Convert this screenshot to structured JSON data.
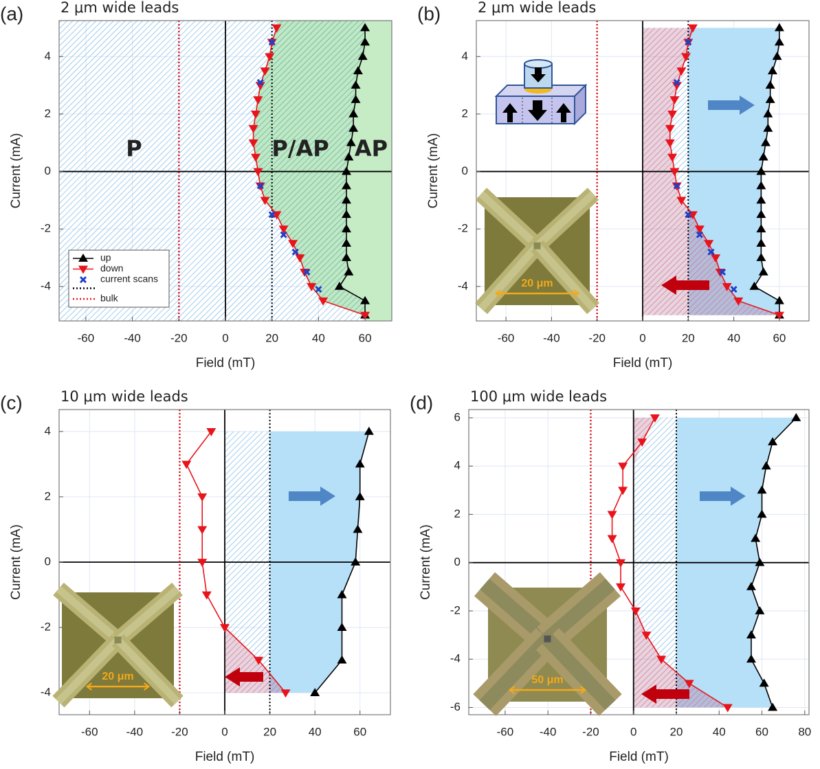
{
  "chart_data": [
    {
      "type": "line",
      "label": "(a)",
      "title": "2 μm wide leads",
      "xlabel": "Field (mT)",
      "ylabel": "Current (mA)",
      "xlim": [
        -71.5,
        71.5
      ],
      "ylim": [
        -5.2,
        5.25
      ],
      "xticks": [
        -60,
        -40,
        -20,
        0,
        20,
        40,
        60
      ],
      "yticks": [
        -4,
        -2,
        0,
        2,
        4
      ],
      "grid": true,
      "legend": "lower left",
      "annotations": [
        "P",
        "P/AP",
        "AP"
      ],
      "series": [
        {
          "name": "up",
          "color": "#000000",
          "marker": "^",
          "x": [
            60,
            60,
            59,
            57,
            56,
            56,
            55,
            55,
            54,
            53,
            52,
            52,
            52,
            52,
            52,
            52,
            52,
            53,
            49,
            60,
            60
          ],
          "values": [
            5,
            4.5,
            4,
            3.5,
            3,
            2.5,
            2,
            1.5,
            1,
            0.5,
            0,
            -0.5,
            -1,
            -1.5,
            -2,
            -2.5,
            -3,
            -3.5,
            -4,
            -4.5,
            -5
          ]
        },
        {
          "name": "down",
          "color": "#e8141b",
          "marker": "v",
          "x": [
            22,
            20,
            19,
            17,
            15,
            14,
            13,
            12,
            12,
            13,
            14,
            15,
            17,
            22,
            25,
            29,
            32,
            34,
            37,
            42,
            60
          ],
          "values": [
            5,
            4.5,
            4,
            3.5,
            3,
            2.5,
            2,
            1.5,
            1,
            0.5,
            0,
            -0.5,
            -1,
            -1.5,
            -2,
            -2.5,
            -3,
            -3.5,
            -4,
            -4.5,
            -5
          ]
        },
        {
          "name": "current scans",
          "color": "#1f3fc8",
          "marker": "x",
          "x": [
            20,
            15,
            15,
            20,
            25,
            30,
            35,
            40
          ],
          "values": [
            4.5,
            3.1,
            -0.5,
            -1.5,
            -2.2,
            -2.8,
            -3.5,
            -4.1
          ]
        }
      ],
      "vlines": [
        {
          "x": 20,
          "color": "#000000"
        },
        {
          "x": -20,
          "name": "bulk",
          "color": "#e8141b"
        }
      ]
    },
    {
      "type": "line",
      "label": "(b)",
      "title": "2 μm wide leads",
      "xlabel": "Field (mT)",
      "ylabel": "Current (mA)",
      "xlim": [
        -73,
        73
      ],
      "ylim": [
        -5.2,
        5.25
      ],
      "xticks": [
        -60,
        -40,
        -20,
        0,
        20,
        40,
        60
      ],
      "yticks": [
        -4,
        -2,
        0,
        2,
        4
      ],
      "grid": true,
      "inset_scale": "20 μm",
      "series": [
        {
          "color": "#000000",
          "marker": "^",
          "x": [
            60,
            60,
            59,
            57,
            56,
            56,
            55,
            55,
            54,
            53,
            52,
            52,
            52,
            52,
            52,
            52,
            52,
            53,
            49,
            60,
            60
          ],
          "values": [
            5,
            4.5,
            4,
            3.5,
            3,
            2.5,
            2,
            1.5,
            1,
            0.5,
            0,
            -0.5,
            -1,
            -1.5,
            -2,
            -2.5,
            -3,
            -3.5,
            -4,
            -4.5,
            -5
          ]
        },
        {
          "color": "#e8141b",
          "marker": "v",
          "x": [
            22,
            20,
            19,
            17,
            15,
            14,
            13,
            12,
            12,
            13,
            14,
            15,
            17,
            22,
            25,
            29,
            32,
            34,
            37,
            42,
            60
          ],
          "values": [
            5,
            4.5,
            4,
            3.5,
            3,
            2.5,
            2,
            1.5,
            1,
            0.5,
            0,
            -0.5,
            -1,
            -1.5,
            -2,
            -2.5,
            -3,
            -3.5,
            -4,
            -4.5,
            -5
          ]
        },
        {
          "color": "#1f3fc8",
          "marker": "x",
          "x": [
            20,
            15,
            15,
            20,
            25,
            30,
            35,
            40
          ],
          "values": [
            4.5,
            3.1,
            -0.5,
            -1.5,
            -2.2,
            -2.8,
            -3.5,
            -4.1
          ]
        }
      ],
      "vlines": [
        {
          "x": 20,
          "color": "#000000"
        },
        {
          "x": -20,
          "color": "#e8141b"
        }
      ]
    },
    {
      "type": "line",
      "label": "(c)",
      "title": "10 μm wide leads",
      "xlabel": "Field (mT)",
      "ylabel": "Current (mA)",
      "xlim": [
        -73.5,
        73.5
      ],
      "ylim": [
        -4.67,
        4.67
      ],
      "xticks": [
        -60,
        -40,
        -20,
        0,
        20,
        40,
        60
      ],
      "yticks": [
        -4,
        -2,
        0,
        2,
        4
      ],
      "grid": true,
      "inset_scale": "20 μm",
      "series": [
        {
          "color": "#000000",
          "marker": "^",
          "x": [
            64,
            60,
            60,
            59,
            58,
            52,
            52,
            52,
            40
          ],
          "values": [
            4,
            3,
            2,
            1,
            0,
            -1,
            -2,
            -3,
            -4
          ]
        },
        {
          "color": "#e8141b",
          "marker": "v",
          "x": [
            -6,
            -17,
            -10,
            -10,
            -10,
            -8,
            0,
            15,
            27
          ],
          "values": [
            4,
            3,
            2,
            1,
            0,
            -1,
            -2,
            -3,
            -4
          ]
        }
      ],
      "vlines": [
        {
          "x": 20,
          "color": "#000000"
        },
        {
          "x": -20,
          "color": "#e8141b"
        }
      ]
    },
    {
      "type": "line",
      "label": "(d)",
      "title": "100 μm wide leads",
      "xlabel": "Field (mT)",
      "ylabel": "Current (mA)",
      "xlim": [
        -77,
        82
      ],
      "ylim": [
        -6.3,
        6.34
      ],
      "xticks": [
        -60,
        -40,
        -20,
        0,
        20,
        40,
        60,
        80
      ],
      "yticks": [
        -6,
        -4,
        -2,
        0,
        2,
        4,
        6
      ],
      "grid": true,
      "inset_scale": "50 μm",
      "series": [
        {
          "color": "#000000",
          "marker": "^",
          "x": [
            76,
            65,
            62,
            60,
            60,
            57,
            59,
            55,
            59,
            55,
            55,
            61,
            65
          ],
          "values": [
            6,
            5,
            4,
            3,
            2,
            1,
            0,
            -1,
            -2,
            -3,
            -4,
            -5,
            -6
          ]
        },
        {
          "color": "#e8141b",
          "marker": "v",
          "x": [
            10,
            4,
            -5,
            -5,
            -10,
            -10,
            -6,
            -6,
            1,
            6,
            13,
            26,
            44
          ],
          "values": [
            6,
            5,
            4,
            3,
            2,
            1,
            0,
            -1,
            -2,
            -3,
            -4,
            -5,
            -6
          ]
        }
      ],
      "vlines": [
        {
          "x": 20,
          "color": "#000000"
        },
        {
          "x": -20,
          "color": "#e8141b"
        }
      ]
    }
  ]
}
